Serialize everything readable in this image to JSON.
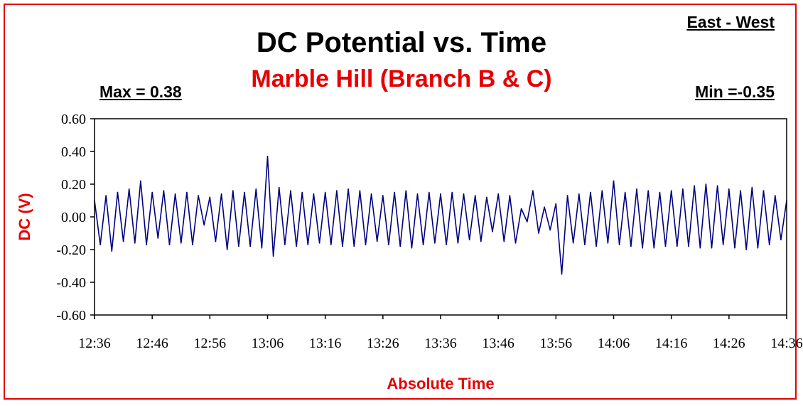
{
  "labels": {
    "direction": "East - West",
    "max": "Max = 0.38",
    "min": "Min =-0.35"
  },
  "chart_data": {
    "type": "line",
    "title": "DC Potential vs. Time",
    "subtitle": "Marble Hill (Branch B & C)",
    "xlabel": "Absolute Time",
    "ylabel": "DC (V)",
    "xlim": [
      "12:36",
      "14:36"
    ],
    "ylim": [
      -0.6,
      0.6
    ],
    "y_ticks": [
      "0.60",
      "0.40",
      "0.20",
      "0.00",
      "-0.20",
      "-0.40",
      "-0.60"
    ],
    "x_ticks": [
      "12:36",
      "12:46",
      "12:56",
      "13:06",
      "13:16",
      "13:26",
      "13:36",
      "13:46",
      "13:56",
      "14:06",
      "14:16",
      "14:26",
      "14:36"
    ],
    "grid": false,
    "legend": "none",
    "line_color": "#000080",
    "series": [
      {
        "x": [
          "12:36",
          "12:37",
          "12:38",
          "12:39",
          "12:40",
          "12:41",
          "12:42",
          "12:43",
          "12:44",
          "12:45",
          "12:46",
          "12:47",
          "12:48",
          "12:49",
          "12:50",
          "12:51",
          "12:52",
          "12:53",
          "12:54",
          "12:55",
          "12:56",
          "12:57",
          "12:58",
          "12:59",
          "13:00",
          "13:01",
          "13:02",
          "13:03",
          "13:04",
          "13:05",
          "13:06",
          "13:07",
          "13:08",
          "13:09",
          "13:10",
          "13:11",
          "13:12",
          "13:13",
          "13:14",
          "13:15",
          "13:16",
          "13:17",
          "13:18",
          "13:19",
          "13:20",
          "13:21",
          "13:22",
          "13:23",
          "13:24",
          "13:25",
          "13:26",
          "13:27",
          "13:28",
          "13:29",
          "13:30",
          "13:31",
          "13:32",
          "13:33",
          "13:34",
          "13:35",
          "13:36",
          "13:37",
          "13:38",
          "13:39",
          "13:40",
          "13:41",
          "13:42",
          "13:43",
          "13:44",
          "13:45",
          "13:46",
          "13:47",
          "13:48",
          "13:49",
          "13:50",
          "13:51",
          "13:52",
          "13:53",
          "13:54",
          "13:55",
          "13:56",
          "13:57",
          "13:58",
          "13:59",
          "14:00",
          "14:01",
          "14:02",
          "14:03",
          "14:04",
          "14:05",
          "14:06",
          "14:07",
          "14:08",
          "14:09",
          "14:10",
          "14:11",
          "14:12",
          "14:13",
          "14:14",
          "14:15",
          "14:16",
          "14:17",
          "14:18",
          "14:19",
          "14:20",
          "14:21",
          "14:22",
          "14:23",
          "14:24",
          "14:25",
          "14:26",
          "14:27",
          "14:28",
          "14:29",
          "14:30",
          "14:31",
          "14:32",
          "14:33",
          "14:34",
          "14:35",
          "14:36"
        ],
        "values": [
          0.1,
          -0.17,
          0.13,
          -0.21,
          0.15,
          -0.15,
          0.17,
          -0.16,
          0.22,
          -0.17,
          0.15,
          -0.13,
          0.16,
          -0.17,
          0.14,
          -0.16,
          0.15,
          -0.17,
          0.13,
          -0.05,
          0.12,
          -0.15,
          0.14,
          -0.2,
          0.16,
          -0.18,
          0.15,
          -0.18,
          0.17,
          -0.19,
          0.37,
          -0.24,
          0.18,
          -0.17,
          0.16,
          -0.18,
          0.15,
          -0.17,
          0.14,
          -0.16,
          0.15,
          -0.17,
          0.16,
          -0.18,
          0.17,
          -0.18,
          0.16,
          -0.17,
          0.14,
          -0.15,
          0.13,
          -0.17,
          0.15,
          -0.18,
          0.16,
          -0.19,
          0.14,
          -0.17,
          0.15,
          -0.16,
          0.14,
          -0.17,
          0.15,
          -0.16,
          0.14,
          -0.14,
          0.13,
          -0.15,
          0.12,
          -0.09,
          0.14,
          -0.15,
          0.13,
          -0.16,
          0.05,
          -0.03,
          0.16,
          -0.1,
          0.06,
          -0.08,
          0.08,
          -0.35,
          0.13,
          -0.16,
          0.14,
          -0.17,
          0.15,
          -0.18,
          0.16,
          -0.16,
          0.22,
          -0.17,
          0.15,
          -0.18,
          0.17,
          -0.19,
          0.16,
          -0.19,
          0.15,
          -0.18,
          0.16,
          -0.18,
          0.17,
          -0.18,
          0.19,
          -0.19,
          0.2,
          -0.19,
          0.19,
          -0.17,
          0.17,
          -0.19,
          0.16,
          -0.2,
          0.18,
          -0.19,
          0.16,
          -0.17,
          0.13,
          -0.14,
          0.1
        ]
      }
    ]
  }
}
